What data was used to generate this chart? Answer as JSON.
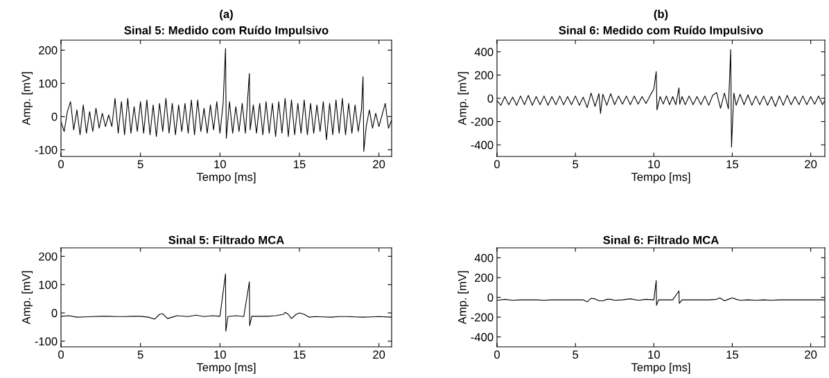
{
  "chart_data": [
    {
      "type": "line",
      "title": "(a)",
      "subtitle": "Sinal 5: Medido com Ruído Impulsivo",
      "xlabel": "Tempo [ms]",
      "ylabel": "Amp. [mV]",
      "xlim": [
        0,
        20.8
      ],
      "xticks": [
        0,
        5,
        10,
        15,
        20
      ],
      "ylim": [
        -120,
        230
      ],
      "yticks": [
        -100,
        0,
        100,
        200
      ],
      "grid": false,
      "legend": false,
      "series": [
        {
          "color": "#000000",
          "x": [
            0,
            0.2,
            0.4,
            0.6,
            0.8,
            1.0,
            1.2,
            1.4,
            1.6,
            1.8,
            2.0,
            2.2,
            2.4,
            2.6,
            2.8,
            3.0,
            3.2,
            3.4,
            3.6,
            3.8,
            4.0,
            4.2,
            4.4,
            4.6,
            4.8,
            5.0,
            5.2,
            5.4,
            5.6,
            5.8,
            6.0,
            6.2,
            6.4,
            6.6,
            6.8,
            7.0,
            7.2,
            7.4,
            7.6,
            7.8,
            8.0,
            8.2,
            8.4,
            8.6,
            8.8,
            9.0,
            9.2,
            9.4,
            9.6,
            9.8,
            10.0,
            10.2,
            10.35,
            10.4,
            10.6,
            10.8,
            11.0,
            11.2,
            11.4,
            11.6,
            11.85,
            11.9,
            12.1,
            12.3,
            12.5,
            12.7,
            12.9,
            13.1,
            13.3,
            13.5,
            13.7,
            13.9,
            14.1,
            14.3,
            14.5,
            14.7,
            14.9,
            15.1,
            15.3,
            15.5,
            15.7,
            15.9,
            16.1,
            16.3,
            16.5,
            16.7,
            16.9,
            17.1,
            17.3,
            17.5,
            17.7,
            17.9,
            18.1,
            18.3,
            18.5,
            18.7,
            18.9,
            19.0,
            19.05,
            19.2,
            19.4,
            19.6,
            19.8,
            20.0,
            20.2,
            20.4,
            20.6,
            20.8
          ],
          "values": [
            -15,
            -45,
            15,
            45,
            -40,
            20,
            -55,
            35,
            -50,
            15,
            -45,
            25,
            -35,
            10,
            -30,
            5,
            -30,
            55,
            -50,
            45,
            -55,
            55,
            -50,
            30,
            -45,
            45,
            -50,
            50,
            -55,
            35,
            -60,
            40,
            -45,
            55,
            -50,
            40,
            -55,
            35,
            -45,
            40,
            -50,
            50,
            -55,
            50,
            -45,
            25,
            -50,
            35,
            -40,
            45,
            -50,
            40,
            205,
            -65,
            45,
            -50,
            30,
            -45,
            40,
            -50,
            130,
            -40,
            35,
            -50,
            40,
            -55,
            45,
            -50,
            40,
            -60,
            45,
            -50,
            55,
            -60,
            50,
            -55,
            40,
            -50,
            50,
            -55,
            40,
            -50,
            35,
            -45,
            45,
            -70,
            40,
            -55,
            50,
            -50,
            55,
            -55,
            40,
            -50,
            35,
            -45,
            20,
            120,
            -105,
            -30,
            20,
            -35,
            10,
            -30,
            5,
            40,
            -35,
            -10
          ]
        }
      ]
    },
    {
      "type": "line",
      "title": "(b)",
      "subtitle": "Sinal 6: Medido com Ruído Impulsivo",
      "xlabel": "Tempo [ms]",
      "ylabel": "Amp. [mV]",
      "xlim": [
        0,
        20.9
      ],
      "xticks": [
        0,
        5,
        10,
        15,
        20
      ],
      "ylim": [
        -500,
        500
      ],
      "yticks": [
        -400,
        -200,
        0,
        200,
        400
      ],
      "grid": false,
      "legend": false,
      "series": [
        {
          "color": "#000000",
          "x": [
            0,
            0.25,
            0.5,
            0.75,
            1.0,
            1.25,
            1.5,
            1.75,
            2.0,
            2.25,
            2.5,
            2.75,
            3.0,
            3.25,
            3.5,
            3.75,
            4.0,
            4.25,
            4.5,
            4.75,
            5.0,
            5.25,
            5.5,
            5.75,
            6.0,
            6.25,
            6.5,
            6.6,
            6.75,
            7.0,
            7.25,
            7.5,
            7.75,
            8.0,
            8.25,
            8.5,
            8.75,
            9.0,
            9.25,
            9.5,
            9.75,
            10.0,
            10.15,
            10.2,
            10.4,
            10.6,
            10.8,
            11.0,
            11.2,
            11.4,
            11.6,
            11.65,
            11.8,
            12.0,
            12.25,
            12.5,
            12.75,
            13.0,
            13.25,
            13.5,
            13.75,
            14.0,
            14.25,
            14.5,
            14.75,
            14.9,
            14.95,
            15.1,
            15.25,
            15.5,
            15.75,
            16.0,
            16.25,
            16.5,
            16.75,
            17.0,
            17.25,
            17.5,
            17.75,
            18.0,
            18.25,
            18.5,
            18.75,
            19.0,
            19.25,
            19.5,
            19.75,
            20.0,
            20.25,
            20.5,
            20.75,
            20.9
          ],
          "values": [
            -20,
            -60,
            15,
            -55,
            10,
            -60,
            20,
            -55,
            25,
            -60,
            15,
            -55,
            20,
            -60,
            15,
            -55,
            20,
            -55,
            15,
            -55,
            20,
            -60,
            10,
            -80,
            45,
            -70,
            40,
            -130,
            35,
            -60,
            40,
            -55,
            20,
            -50,
            20,
            -55,
            20,
            -50,
            15,
            -45,
            20,
            80,
            230,
            -100,
            15,
            -50,
            20,
            -55,
            15,
            -55,
            90,
            -50,
            15,
            -55,
            20,
            -55,
            15,
            -55,
            20,
            -60,
            25,
            50,
            -85,
            45,
            -90,
            420,
            -420,
            45,
            -60,
            35,
            -55,
            30,
            -60,
            20,
            -55,
            20,
            -60,
            15,
            -70,
            20,
            -60,
            25,
            -55,
            15,
            -55,
            20,
            -55,
            15,
            -50,
            20,
            -55,
            -20
          ]
        }
      ]
    },
    {
      "type": "line",
      "title": "Sinal 5: Filtrado MCA",
      "xlabel": "Tempo [ms]",
      "ylabel": "Amp. [mV]",
      "xlim": [
        0,
        20.8
      ],
      "xticks": [
        0,
        5,
        10,
        15,
        20
      ],
      "ylim": [
        -120,
        230
      ],
      "yticks": [
        -100,
        0,
        100,
        200
      ],
      "grid": false,
      "legend": false,
      "series": [
        {
          "color": "#000000",
          "x": [
            0,
            0.5,
            1,
            1.5,
            2,
            2.5,
            3,
            3.5,
            4,
            4.5,
            5,
            5.5,
            5.9,
            6.2,
            6.4,
            6.7,
            7.0,
            7.3,
            8,
            8.5,
            9,
            9.5,
            10.0,
            10.35,
            10.37,
            10.5,
            11,
            11.5,
            11.85,
            11.87,
            12,
            12.5,
            13,
            13.5,
            14,
            14.1,
            14.3,
            14.5,
            14.8,
            15,
            15.3,
            15.6,
            16,
            16.5,
            17,
            17.5,
            18,
            18.5,
            19,
            19.5,
            20,
            20.8
          ],
          "values": [
            -12,
            -10,
            -15,
            -14,
            -13,
            -12,
            -12,
            -13,
            -13,
            -12,
            -12,
            -15,
            -22,
            -5,
            -3,
            -20,
            -15,
            -10,
            -13,
            -8,
            -13,
            -10,
            -12,
            138,
            -65,
            -13,
            -10,
            -13,
            110,
            -45,
            -12,
            -12,
            -12,
            -10,
            -5,
            2,
            -5,
            -20,
            -5,
            0,
            -5,
            -15,
            -13,
            -14,
            -15,
            -13,
            -13,
            -14,
            -15,
            -14,
            -13,
            -15
          ]
        }
      ]
    },
    {
      "type": "line",
      "title": "Sinal 6: Filtrado MCA",
      "xlabel": "Tempo [ms]",
      "ylabel": "Amp. [mV]",
      "xlim": [
        0,
        20.9
      ],
      "xticks": [
        0,
        5,
        10,
        15,
        20
      ],
      "ylim": [
        -500,
        500
      ],
      "yticks": [
        -400,
        -200,
        0,
        200,
        400
      ],
      "grid": false,
      "legend": false,
      "series": [
        {
          "color": "#000000",
          "x": [
            0,
            0.5,
            1,
            1.5,
            2,
            2.5,
            3,
            3.5,
            4,
            4.5,
            5,
            5.5,
            5.75,
            6.0,
            6.25,
            6.5,
            6.75,
            7.0,
            7.25,
            7.5,
            8,
            8.5,
            9,
            9.5,
            10.0,
            10.15,
            10.17,
            10.3,
            10.8,
            11.2,
            11.6,
            11.62,
            11.8,
            12.5,
            13,
            13.5,
            14,
            14.2,
            14.5,
            14.75,
            15,
            15.25,
            15.5,
            16,
            16.5,
            17,
            17.5,
            18,
            18.5,
            19,
            19.5,
            20,
            20.9
          ],
          "values": [
            -30,
            -20,
            -30,
            -25,
            -25,
            -25,
            -30,
            -25,
            -25,
            -25,
            -25,
            -25,
            -45,
            -10,
            -15,
            -35,
            -35,
            -20,
            -20,
            -30,
            -25,
            -15,
            -30,
            -20,
            -25,
            170,
            -80,
            -25,
            -25,
            -25,
            65,
            -60,
            -25,
            -25,
            -25,
            -25,
            -20,
            -5,
            -35,
            -20,
            -5,
            -20,
            -30,
            -25,
            -30,
            -25,
            -30,
            -25,
            -25,
            -25,
            -25,
            -25,
            -25
          ]
        }
      ]
    }
  ]
}
